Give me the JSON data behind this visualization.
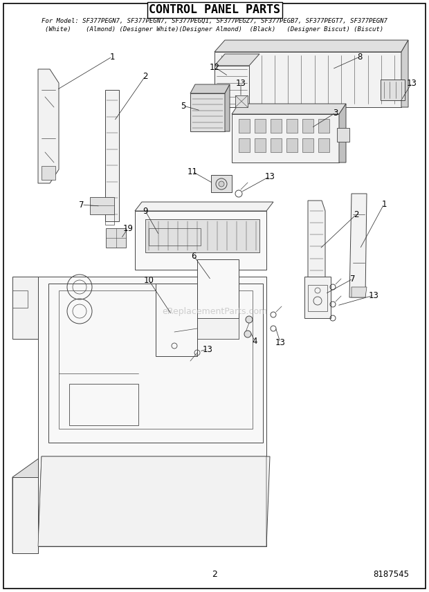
{
  "title": "CONTROL PANEL PARTS",
  "model_line": "For Model: SF377PEGN7, SF377PEGN7, SF377PEGQ1, SF377PEGZ7, SF377PEGB7, SF377PEGT7, SF377PEGN7",
  "color_line": "(White)    (Almond) (Designer White)(Designer Almond)  (Black)   (Designer Biscut) (Biscut)",
  "page_number": "2",
  "part_number": "8187545",
  "background_color": "#ffffff",
  "line_color": "#444444",
  "text_color": "#000000",
  "watermark_text": "eReplacementParts.com",
  "watermark_color": "#bbbbbb",
  "title_fontsize": 12,
  "model_fontsize": 6.5,
  "color_fontsize": 6.5,
  "label_fontsize": 8.5,
  "page_fontsize": 9,
  "part_num_fontsize": 8.5,
  "fig_width": 6.2,
  "fig_height": 8.56,
  "dpi": 100
}
